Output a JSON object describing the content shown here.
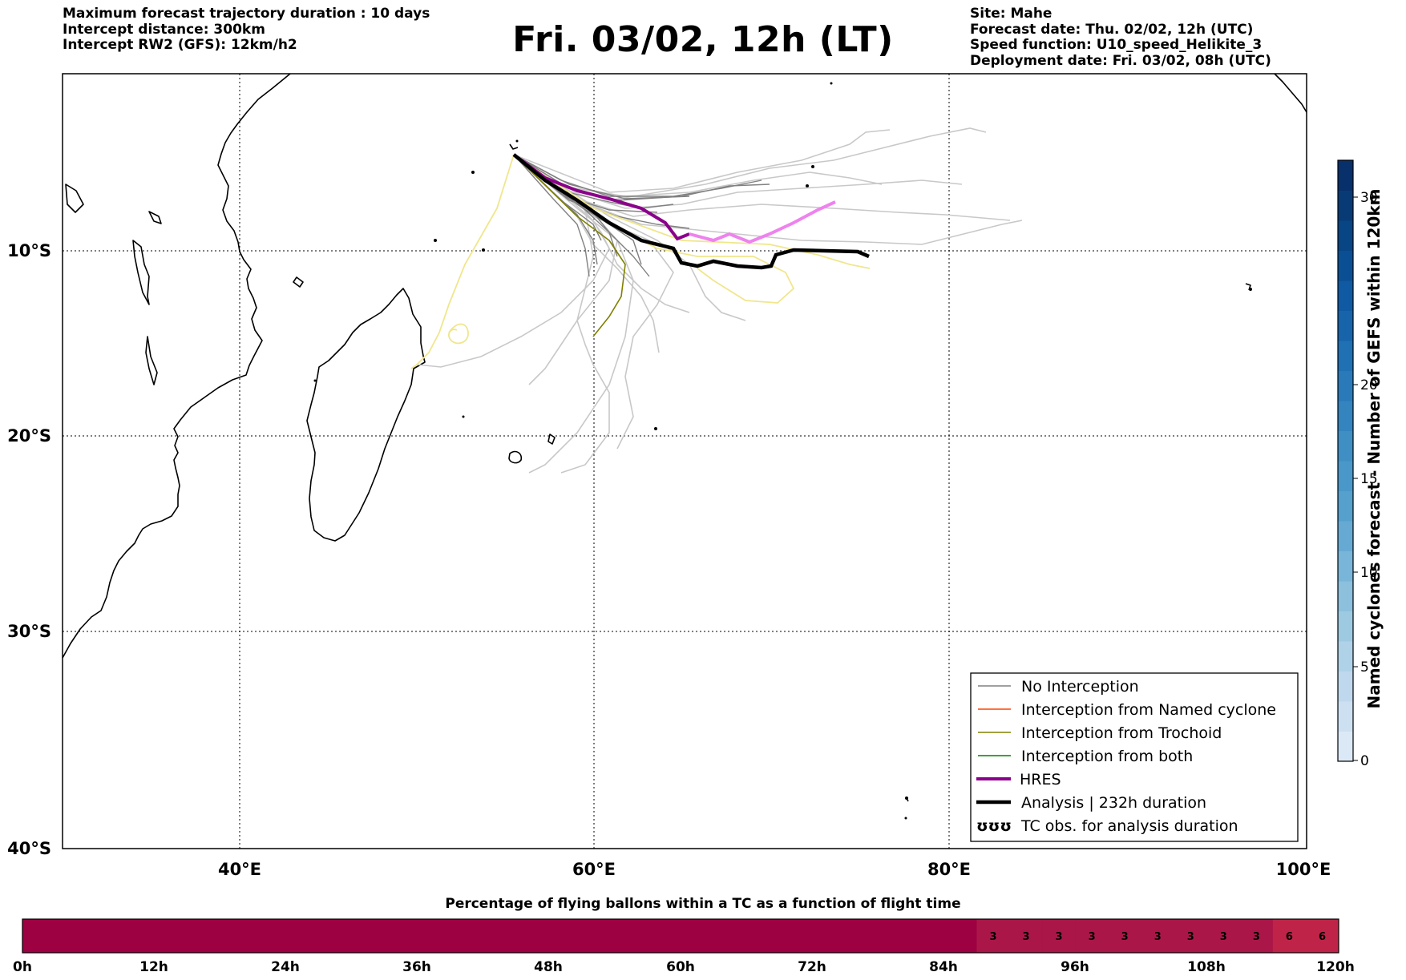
{
  "header": {
    "left_lines": [
      "Maximum forecast trajectory duration : 10 days",
      "Intercept distance: 300km",
      "Intercept RW2 (GFS):  12km/h2"
    ],
    "title": "Fri. 03/02, 12h (LT)",
    "right_lines": [
      "Site: Mahe",
      "Forecast date: Thu. 02/02, 12h (UTC)",
      "Speed function: U10_speed_Helikite_3",
      "Deployment date: Fri. 03/02, 08h (UTC)"
    ]
  },
  "map": {
    "lon_range": [
      30,
      100
    ],
    "lat_range": [
      -40,
      0
    ],
    "lat_labels": [
      "10°S",
      "20°S",
      "30°S",
      "40°S"
    ],
    "lon_labels": [
      "40°E",
      "60°E",
      "80°E",
      "100°E"
    ],
    "grid": true,
    "colors": {
      "no_interception": "#808080",
      "named_cyclone": "#ff4500",
      "trochoid": "#808000",
      "both": "#008000",
      "hres": "#8b008b",
      "hres_light": "#ee82ee",
      "analysis": "#000000",
      "ensemble_light": "#c8c8c8",
      "yellow_track": "#f0e68c"
    }
  },
  "legend": {
    "placement": "lower-right",
    "items": [
      {
        "label": "No Interception",
        "color": "#808080",
        "style": "thin"
      },
      {
        "label": "Interception from Named cyclone",
        "color": "#ff4500",
        "style": "thin"
      },
      {
        "label": "Interception from Trochoid",
        "color": "#808000",
        "style": "thin"
      },
      {
        "label": "Interception from both",
        "color": "#008000",
        "style": "thin"
      },
      {
        "label": "HRES",
        "color": "#8b008b",
        "style": "thick"
      },
      {
        "label": "Analysis | 232h duration",
        "color": "#000000",
        "style": "thick"
      },
      {
        "label": "TC obs. for analysis duration",
        "color": "#000000",
        "style": "symbol",
        "symbol": "ʊʊʊ"
      }
    ]
  },
  "colorbar": {
    "label": "Named cyclones forecast - Number of GEFS within 120km",
    "ticks": [
      "0",
      "5",
      "10",
      "15",
      "20",
      "30"
    ],
    "colors": [
      "#dbe9f6",
      "#cde0f1",
      "#bfd8ed",
      "#b0d2e8",
      "#9ecae1",
      "#8cc0dd",
      "#79b5d9",
      "#66aad4",
      "#56a0ce",
      "#4a98c9",
      "#3f8fc5",
      "#3484bf",
      "#2a7ab9",
      "#2070b4",
      "#1864aa",
      "#0f5aa3",
      "#0a4f94",
      "#084584",
      "#083b75",
      "#08306b"
    ]
  },
  "bottom_bar": {
    "title": "Percentage of flying ballons within a TC as a function of flight time",
    "time_labels": [
      "0h",
      "12h",
      "24h",
      "36h",
      "48h",
      "60h",
      "72h",
      "84h",
      "96h",
      "108h",
      "120h"
    ],
    "cells_3": [
      "3",
      "3",
      "3",
      "3",
      "3",
      "3",
      "3",
      "3",
      "3"
    ],
    "cells_6": [
      "6",
      "6"
    ],
    "colors": {
      "base": "#9e0142",
      "three": "#ab1648",
      "six": "#bf2448"
    }
  }
}
